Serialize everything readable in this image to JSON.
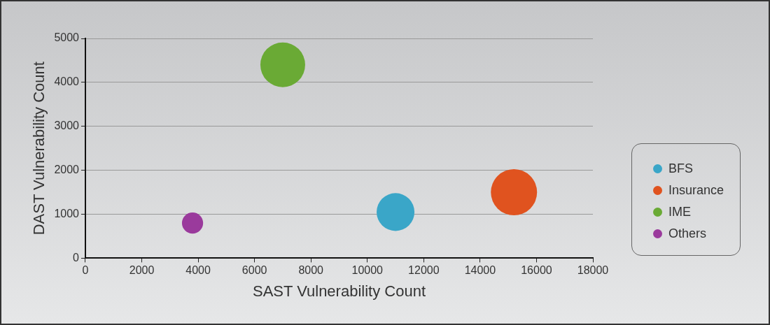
{
  "chart_data": {
    "type": "bubble",
    "xlabel": "SAST Vulnerability Count",
    "ylabel": "DAST Vulnerability Count",
    "series": [
      {
        "name": "BFS",
        "color": "#3aa6c8",
        "x": [
          11000
        ],
        "values": [
          1050
        ],
        "sizes": [
          0.67
        ]
      },
      {
        "name": "Insurance",
        "color": "#e0531f",
        "x": [
          15200
        ],
        "values": [
          1500
        ],
        "sizes": [
          1
        ]
      },
      {
        "name": "IME",
        "color": "#6aaa35",
        "x": [
          7000
        ],
        "values": [
          4400
        ],
        "sizes": [
          0.94
        ]
      },
      {
        "name": "Others",
        "color": "#9a3a9c",
        "x": [
          3800
        ],
        "values": [
          800
        ],
        "sizes": [
          0.21
        ]
      }
    ],
    "xlim": [
      0,
      18000
    ],
    "xticks": [
      0,
      2000,
      4000,
      6000,
      8000,
      10000,
      12000,
      14000,
      16000,
      18000
    ],
    "ylim": [
      0,
      5000
    ],
    "yticks": [
      0,
      1000,
      2000,
      3000,
      4000,
      5000
    ],
    "grid": "y",
    "legend": "right"
  }
}
